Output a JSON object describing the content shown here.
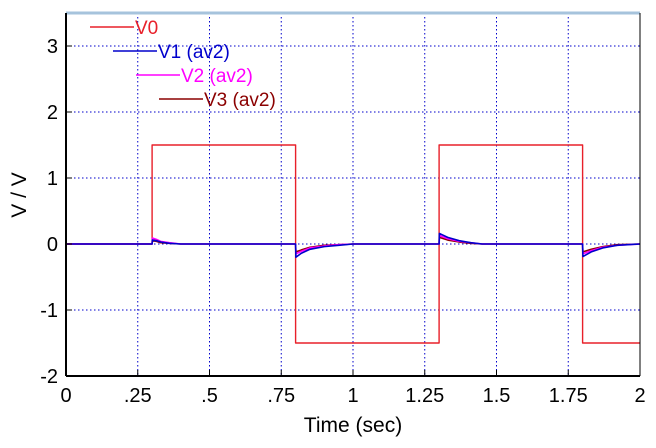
{
  "chart_data": {
    "type": "line",
    "title": "",
    "xlabel": "Time (sec)",
    "ylabel": "V / V",
    "xlim": [
      0,
      2
    ],
    "ylim": [
      -2,
      3.5
    ],
    "grid": true,
    "grid_color": "#0000cc",
    "frame_top_color": "#a6c3dc",
    "legend_placement": "top-left",
    "x_ticks": [
      {
        "value": 0,
        "label": "0"
      },
      {
        "value": 0.25,
        "label": ".25"
      },
      {
        "value": 0.5,
        "label": ".5"
      },
      {
        "value": 0.75,
        "label": ".75"
      },
      {
        "value": 1,
        "label": "1"
      },
      {
        "value": 1.25,
        "label": "1.25"
      },
      {
        "value": 1.5,
        "label": "1.5"
      },
      {
        "value": 1.75,
        "label": "1.75"
      },
      {
        "value": 2,
        "label": "2"
      }
    ],
    "y_ticks": [
      {
        "value": -2,
        "label": "-2"
      },
      {
        "value": -1,
        "label": "-1"
      },
      {
        "value": 0,
        "label": "0"
      },
      {
        "value": 1,
        "label": "1"
      },
      {
        "value": 2,
        "label": "2"
      },
      {
        "value": 3,
        "label": "3"
      }
    ],
    "series": [
      {
        "name": "V0",
        "color": "#e8202a",
        "x": [
          0,
          0.3,
          0.3,
          0.8,
          0.8,
          1.3,
          1.3,
          1.8,
          1.8,
          2
        ],
        "y": [
          0,
          0,
          1.5,
          1.5,
          -1.5,
          -1.5,
          1.5,
          1.5,
          -1.5,
          -1.5
        ]
      },
      {
        "name": "V1 (av2)",
        "color": "#0000cc",
        "x": [
          0,
          0.3,
          0.301,
          0.315,
          0.33,
          0.36,
          0.4,
          0.8,
          0.801,
          0.82,
          0.85,
          0.9,
          0.95,
          1.0,
          1.3,
          1.301,
          1.33,
          1.37,
          1.41,
          1.45,
          1.8,
          1.801,
          1.83,
          1.87,
          1.92,
          2.0
        ],
        "y": [
          0,
          0,
          0.06,
          0.05,
          0.03,
          0.01,
          0,
          0,
          -0.2,
          -0.14,
          -0.08,
          -0.04,
          -0.02,
          0,
          0,
          0.16,
          0.1,
          0.05,
          0.02,
          0,
          0,
          -0.19,
          -0.12,
          -0.06,
          -0.02,
          0
        ]
      },
      {
        "name": "V2 (av2)",
        "color": "#ff00ff",
        "x": [
          0,
          0.3,
          0.301,
          0.315,
          0.33,
          0.36,
          0.4,
          0.8,
          0.801,
          0.82,
          0.85,
          0.9,
          0.95,
          1.0,
          1.3,
          1.301,
          1.33,
          1.37,
          1.41,
          1.45,
          1.8,
          1.801,
          1.83,
          1.87,
          1.92,
          2.0
        ],
        "y": [
          0,
          0,
          0.09,
          0.07,
          0.04,
          0.02,
          0,
          0,
          -0.15,
          -0.11,
          -0.06,
          -0.03,
          -0.01,
          0,
          0,
          0.13,
          0.08,
          0.04,
          0.02,
          0,
          0,
          -0.15,
          -0.1,
          -0.05,
          -0.02,
          0
        ]
      },
      {
        "name": "V3 (av2)",
        "color": "#8b0000",
        "x": [
          0,
          0.3,
          0.301,
          0.315,
          0.33,
          0.36,
          0.4,
          0.8,
          0.801,
          0.82,
          0.85,
          0.9,
          0.95,
          1.0,
          1.3,
          1.301,
          1.33,
          1.37,
          1.41,
          1.45,
          1.8,
          1.801,
          1.83,
          1.87,
          1.92,
          2.0
        ],
        "y": [
          0,
          0,
          0.05,
          0.04,
          0.02,
          0.01,
          0,
          0,
          -0.12,
          -0.09,
          -0.05,
          -0.02,
          -0.01,
          0,
          0,
          0.1,
          0.06,
          0.03,
          0.01,
          0,
          0,
          -0.12,
          -0.08,
          -0.04,
          -0.01,
          0
        ]
      }
    ]
  }
}
